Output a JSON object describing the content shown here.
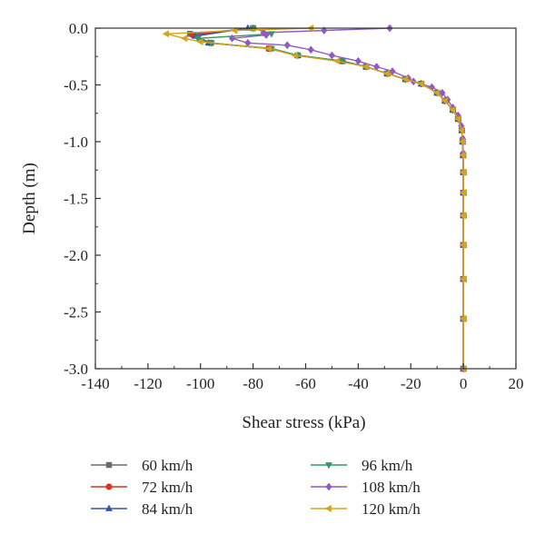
{
  "chart_data": {
    "type": "line",
    "title": "",
    "xlabel": "Shear stress (kPa)",
    "ylabel": "Depth (m)",
    "xlim": [
      -140,
      20
    ],
    "ylim": [
      -3.0,
      0.0
    ],
    "x_ticks": [
      -140,
      -120,
      -100,
      -80,
      -60,
      -40,
      -20,
      0,
      20
    ],
    "y_ticks": [
      0.0,
      -0.5,
      -1.0,
      -1.5,
      -2.0,
      -2.5,
      -3.0
    ],
    "x_tick_labels": [
      "-140",
      "-120",
      "-100",
      "-80",
      "-60",
      "-40",
      "-20",
      "0",
      "20"
    ],
    "y_tick_labels": [
      "0.0",
      "-0.5",
      "-1.0",
      "-1.5",
      "-2.0",
      "-2.5",
      "-3.0"
    ],
    "grid": false,
    "legend_position": "bottom",
    "series": [
      {
        "name": "60 km/h",
        "color": "#6b6b6b",
        "marker": "square",
        "points": [
          [
            -80,
            0
          ],
          [
            -104,
            -0.05
          ],
          [
            -96,
            -0.13
          ],
          [
            -74,
            -0.18
          ],
          [
            -63,
            -0.24
          ],
          [
            -46,
            -0.29
          ],
          [
            -37,
            -0.34
          ],
          [
            -29,
            -0.4
          ],
          [
            -22,
            -0.45
          ],
          [
            -16,
            -0.49
          ],
          [
            -10,
            -0.57
          ],
          [
            -7,
            -0.64
          ],
          [
            -4,
            -0.72
          ],
          [
            -2,
            -0.8
          ],
          [
            -0.6,
            -0.9
          ],
          [
            -0.3,
            -1.0
          ],
          [
            -0.1,
            -1.12
          ],
          [
            0,
            -1.27
          ],
          [
            0,
            -1.45
          ],
          [
            0,
            -1.65
          ],
          [
            0,
            -1.91
          ],
          [
            0,
            -2.21
          ],
          [
            0,
            -2.56
          ],
          [
            0,
            -3.0
          ]
        ]
      },
      {
        "name": "72 km/h",
        "color": "#d8342a",
        "marker": "circle",
        "points": [
          [
            -80,
            0
          ],
          [
            -103,
            -0.06
          ],
          [
            -96,
            -0.13
          ],
          [
            -74,
            -0.18
          ],
          [
            -63,
            -0.24
          ],
          [
            -46,
            -0.29
          ],
          [
            -37,
            -0.34
          ],
          [
            -29,
            -0.4
          ],
          [
            -22,
            -0.45
          ],
          [
            -16,
            -0.49
          ],
          [
            -10,
            -0.57
          ],
          [
            -7,
            -0.64
          ],
          [
            -4,
            -0.72
          ],
          [
            -2,
            -0.8
          ],
          [
            -0.6,
            -0.9
          ],
          [
            -0.3,
            -1.0
          ],
          [
            -0.1,
            -1.12
          ],
          [
            0,
            -1.27
          ],
          [
            0,
            -1.45
          ],
          [
            0,
            -1.65
          ],
          [
            0,
            -1.91
          ],
          [
            0,
            -2.21
          ],
          [
            0,
            -2.56
          ],
          [
            0,
            -3.0
          ]
        ]
      },
      {
        "name": "84 km/h",
        "color": "#2f55b4",
        "marker": "triangle-up",
        "points": [
          [
            -82,
            0
          ],
          [
            -102,
            -0.07
          ],
          [
            -97,
            -0.13
          ],
          [
            -73,
            -0.18
          ],
          [
            -63,
            -0.24
          ],
          [
            -46,
            -0.29
          ],
          [
            -37,
            -0.34
          ],
          [
            -29,
            -0.4
          ],
          [
            -22,
            -0.45
          ],
          [
            -16,
            -0.49
          ],
          [
            -10,
            -0.57
          ],
          [
            -7,
            -0.64
          ],
          [
            -4,
            -0.72
          ],
          [
            -2,
            -0.8
          ],
          [
            -0.6,
            -0.9
          ],
          [
            -0.3,
            -1.0
          ],
          [
            -0.1,
            -1.12
          ],
          [
            0,
            -1.27
          ],
          [
            0,
            -1.45
          ],
          [
            0,
            -1.65
          ],
          [
            0,
            -1.91
          ],
          [
            0,
            -2.21
          ],
          [
            0,
            -2.56
          ],
          [
            0,
            -3.0
          ]
        ]
      },
      {
        "name": "96 km/h",
        "color": "#2e9b63",
        "marker": "triangle-down",
        "points": [
          [
            -80,
            0
          ],
          [
            -73,
            -0.05
          ],
          [
            -101,
            -0.09
          ],
          [
            -96,
            -0.13
          ],
          [
            -73,
            -0.18
          ],
          [
            -63,
            -0.24
          ],
          [
            -46,
            -0.29
          ],
          [
            -37,
            -0.34
          ],
          [
            -29,
            -0.4
          ],
          [
            -22,
            -0.45
          ],
          [
            -16,
            -0.49
          ],
          [
            -10,
            -0.57
          ],
          [
            -7,
            -0.64
          ],
          [
            -4,
            -0.72
          ],
          [
            -2,
            -0.8
          ],
          [
            -0.6,
            -0.9
          ],
          [
            -0.3,
            -1.0
          ],
          [
            -0.1,
            -1.12
          ],
          [
            0,
            -1.27
          ],
          [
            0,
            -1.45
          ],
          [
            0,
            -1.65
          ],
          [
            0,
            -1.91
          ],
          [
            0,
            -2.21
          ],
          [
            0,
            -2.56
          ],
          [
            0,
            -3.0
          ]
        ]
      },
      {
        "name": "108 km/h",
        "color": "#8e5cc1",
        "marker": "diamond",
        "points": [
          [
            -28,
            0
          ],
          [
            -53,
            -0.02
          ],
          [
            -76,
            -0.04
          ],
          [
            -75,
            -0.06
          ],
          [
            -88,
            -0.09
          ],
          [
            -82,
            -0.13
          ],
          [
            -67,
            -0.15
          ],
          [
            -58,
            -0.19
          ],
          [
            -50,
            -0.24
          ],
          [
            -40,
            -0.29
          ],
          [
            -33,
            -0.34
          ],
          [
            -27,
            -0.38
          ],
          [
            -21,
            -0.44
          ],
          [
            -19,
            -0.47
          ],
          [
            -12,
            -0.52
          ],
          [
            -8,
            -0.57
          ],
          [
            -6,
            -0.63
          ],
          [
            -4,
            -0.7
          ],
          [
            -2,
            -0.77
          ],
          [
            -0.8,
            -0.86
          ],
          [
            -0.3,
            -0.97
          ],
          [
            -0.1,
            -1.1
          ],
          [
            0,
            -1.27
          ],
          [
            0,
            -1.45
          ],
          [
            0,
            -1.65
          ],
          [
            0,
            -1.91
          ],
          [
            0,
            -2.21
          ],
          [
            0,
            -2.56
          ],
          [
            0,
            -3.0
          ]
        ]
      },
      {
        "name": "120 km/h",
        "color": "#d9a21b",
        "marker": "triangle-left",
        "points": [
          [
            -58,
            0
          ],
          [
            -87,
            -0.02
          ],
          [
            -113,
            -0.05
          ],
          [
            -106,
            -0.09
          ],
          [
            -100,
            -0.12
          ],
          [
            -74,
            -0.18
          ],
          [
            -64,
            -0.24
          ],
          [
            -48,
            -0.29
          ],
          [
            -37,
            -0.34
          ],
          [
            -29,
            -0.4
          ],
          [
            -22,
            -0.45
          ],
          [
            -16,
            -0.49
          ],
          [
            -10,
            -0.57
          ],
          [
            -7,
            -0.64
          ],
          [
            -4,
            -0.72
          ],
          [
            -2,
            -0.8
          ],
          [
            -0.6,
            -0.9
          ],
          [
            -0.3,
            -1.0
          ],
          [
            -0.1,
            -1.12
          ],
          [
            0,
            -1.27
          ],
          [
            0,
            -1.45
          ],
          [
            0,
            -1.65
          ],
          [
            0,
            -1.91
          ],
          [
            0,
            -2.21
          ],
          [
            0,
            -2.56
          ],
          [
            0,
            -3.0
          ]
        ]
      }
    ]
  }
}
